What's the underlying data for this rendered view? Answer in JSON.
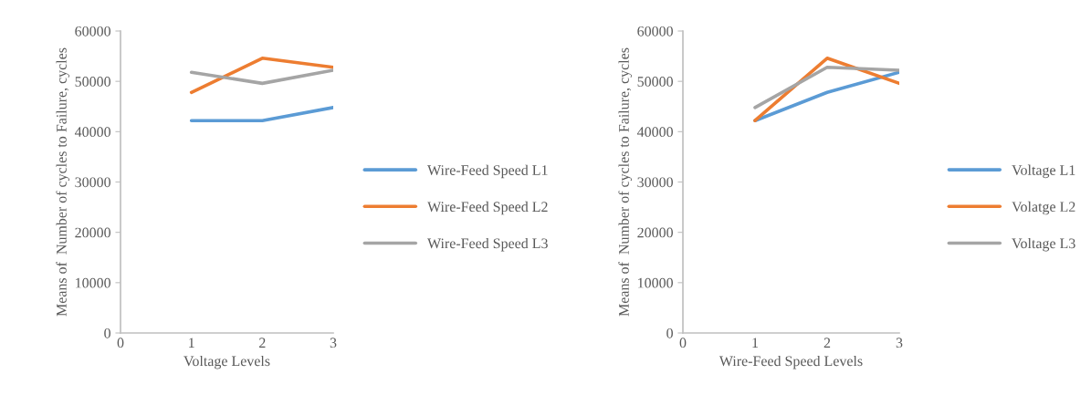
{
  "chart_data": [
    {
      "type": "line",
      "xlabel": "Voltage Levels",
      "ylabel": "Means of  Number of cycles to Failure, cycles",
      "x": [
        1,
        2,
        3
      ],
      "xlim": [
        0,
        3
      ],
      "xticks": [
        0,
        1,
        2,
        3
      ],
      "ylim": [
        0,
        60000
      ],
      "yticks": [
        0,
        10000,
        20000,
        30000,
        40000,
        50000,
        60000
      ],
      "grid": false,
      "legend": "right",
      "marker": "none",
      "series": [
        {
          "name": "Wire-Feed Speed L1",
          "color": "#5b9bd5",
          "values": [
            42200,
            42200,
            44800
          ]
        },
        {
          "name": "Wire-Feed Speed L2",
          "color": "#ed7d31",
          "values": [
            47800,
            54600,
            52800
          ]
        },
        {
          "name": "Wire-Feed Speed L3",
          "color": "#a5a5a5",
          "values": [
            51800,
            49600,
            52200
          ]
        }
      ]
    },
    {
      "type": "line",
      "xlabel": "Wire-Feed Speed Levels",
      "ylabel": "Means of  Number of cycles to Failure, cycles",
      "x": [
        1,
        2,
        3
      ],
      "xlim": [
        0,
        3
      ],
      "xticks": [
        0,
        1,
        2,
        3
      ],
      "ylim": [
        0,
        60000
      ],
      "yticks": [
        0,
        10000,
        20000,
        30000,
        40000,
        50000,
        60000
      ],
      "grid": false,
      "legend": "right",
      "marker": "none",
      "series": [
        {
          "name": "Voltage L1",
          "color": "#5b9bd5",
          "values": [
            42200,
            47800,
            51800
          ]
        },
        {
          "name": "Volatge L2",
          "color": "#ed7d31",
          "values": [
            42200,
            54600,
            49600
          ]
        },
        {
          "name": "Voltage L3",
          "color": "#a5a5a5",
          "values": [
            44800,
            52800,
            52200
          ]
        }
      ]
    }
  ]
}
